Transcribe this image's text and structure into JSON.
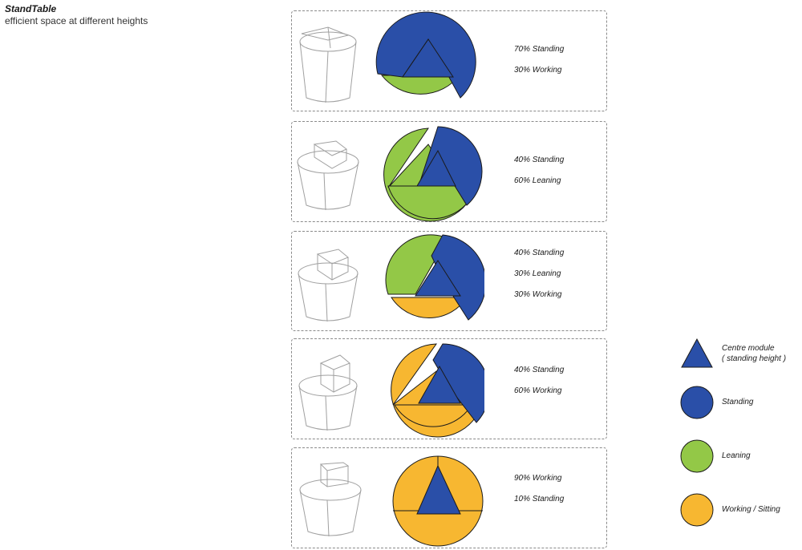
{
  "header": {
    "title": "StandTable",
    "subtitle": "efficient space at different heights"
  },
  "colors": {
    "standing": "#2a4fa8",
    "leaning": "#93c847",
    "working": "#f7b731",
    "outline": "#1a1a1a",
    "sketch": "#9a9a9a"
  },
  "configurations": [
    {
      "labels": [
        "70% Standing",
        "30% Working"
      ]
    },
    {
      "labels": [
        "40% Standing",
        "60% Leaning"
      ]
    },
    {
      "labels": [
        "40% Standing",
        "30% Leaning",
        "30% Working"
      ]
    },
    {
      "labels": [
        "40% Standing",
        "60% Working"
      ]
    },
    {
      "labels": [
        "90% Working",
        "10% Standing"
      ]
    }
  ],
  "legend": [
    {
      "icon": "triangle",
      "color": "#2a4fa8",
      "label": "Centre module",
      "sublabel": "( standing height )"
    },
    {
      "icon": "circle",
      "color": "#2a4fa8",
      "label": "Standing"
    },
    {
      "icon": "circle",
      "color": "#93c847",
      "label": "Leaning"
    },
    {
      "icon": "circle",
      "color": "#f7b731",
      "label": "Working / Sitting"
    }
  ]
}
